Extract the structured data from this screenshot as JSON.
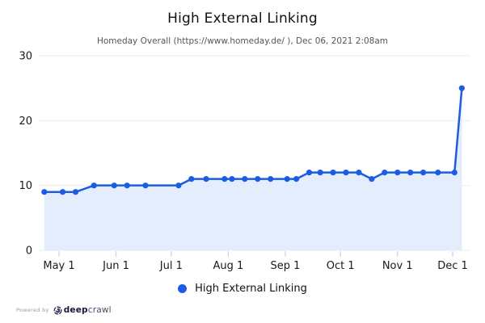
{
  "header": {
    "title": "High External Linking",
    "subtitle": "Homeday Overall (https://www.homeday.de/ ), Dec 06, 2021 2:08am"
  },
  "legend": {
    "items": [
      {
        "label": "High External Linking",
        "color": "#1d5ce2",
        "marker": "circle"
      }
    ]
  },
  "footer": {
    "powered_by": "Powered by",
    "logo_bold": "deep",
    "logo_light": "crawl"
  },
  "chart_data": {
    "type": "line",
    "title": "High External Linking",
    "subtitle": "Homeday Overall (https://www.homeday.de/ ), Dec 06, 2021 2:08am",
    "xlabel": "",
    "ylabel": "",
    "ylim": [
      0,
      30
    ],
    "y_ticks": [
      0,
      10,
      20,
      30
    ],
    "grid": true,
    "legend_position": "bottom",
    "x_origin": "2021-05-01",
    "x_ticks": [
      {
        "label": "May 1",
        "date": "2021-05-01"
      },
      {
        "label": "Jun 1",
        "date": "2021-06-01"
      },
      {
        "label": "Jul 1",
        "date": "2021-07-01"
      },
      {
        "label": "Aug 1",
        "date": "2021-08-01"
      },
      {
        "label": "Sep 1",
        "date": "2021-09-01"
      },
      {
        "label": "Oct 1",
        "date": "2021-10-01"
      },
      {
        "label": "Nov 1",
        "date": "2021-11-01"
      },
      {
        "label": "Dec 1",
        "date": "2021-12-01"
      }
    ],
    "series": [
      {
        "name": "High External Linking",
        "points": [
          {
            "date": "2021-04-23",
            "value": 9
          },
          {
            "date": "2021-05-03",
            "value": 9
          },
          {
            "date": "2021-05-10",
            "value": 9
          },
          {
            "date": "2021-05-20",
            "value": 10
          },
          {
            "date": "2021-05-31",
            "value": 10
          },
          {
            "date": "2021-06-07",
            "value": 10
          },
          {
            "date": "2021-06-17",
            "value": 10
          },
          {
            "date": "2021-07-05",
            "value": 10
          },
          {
            "date": "2021-07-12",
            "value": 11
          },
          {
            "date": "2021-07-20",
            "value": 11
          },
          {
            "date": "2021-07-30",
            "value": 11
          },
          {
            "date": "2021-08-03",
            "value": 11
          },
          {
            "date": "2021-08-10",
            "value": 11
          },
          {
            "date": "2021-08-17",
            "value": 11
          },
          {
            "date": "2021-08-24",
            "value": 11
          },
          {
            "date": "2021-09-02",
            "value": 11
          },
          {
            "date": "2021-09-07",
            "value": 11
          },
          {
            "date": "2021-09-14",
            "value": 12
          },
          {
            "date": "2021-09-20",
            "value": 12
          },
          {
            "date": "2021-09-27",
            "value": 12
          },
          {
            "date": "2021-10-04",
            "value": 12
          },
          {
            "date": "2021-10-11",
            "value": 12
          },
          {
            "date": "2021-10-18",
            "value": 11
          },
          {
            "date": "2021-10-25",
            "value": 12
          },
          {
            "date": "2021-11-01",
            "value": 12
          },
          {
            "date": "2021-11-08",
            "value": 12
          },
          {
            "date": "2021-11-15",
            "value": 12
          },
          {
            "date": "2021-11-23",
            "value": 12
          },
          {
            "date": "2021-12-02",
            "value": 12
          },
          {
            "date": "2021-12-06",
            "value": 25
          }
        ]
      }
    ],
    "colors": {
      "line": "#1d5ce2",
      "area": "#e3edfb",
      "grid": "#ebebeb",
      "tick_mark": "#c9d7ef",
      "axis_text": "#1a1a1a"
    }
  }
}
